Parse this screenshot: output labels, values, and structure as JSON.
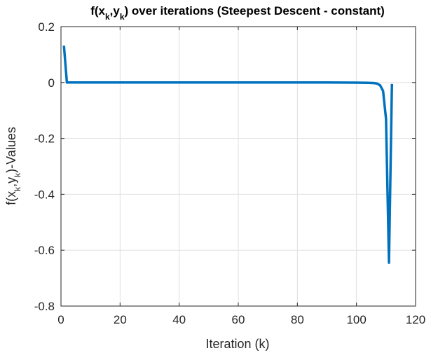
{
  "chart_data": {
    "type": "line",
    "title": {
      "prefix": "f(x",
      "sub1": "k",
      "mid": ",y",
      "sub2": "k",
      "suffix": ") over iterations (Steepest Descent - constant)"
    },
    "xlabel": "Iteration (k)",
    "ylabel": {
      "prefix": "f(x",
      "sub1": "k",
      "mid": ",y",
      "sub2": "k",
      "suffix": ")-Values"
    },
    "xlim": [
      0,
      120
    ],
    "ylim": [
      -0.8,
      0.2
    ],
    "xticks": [
      0,
      20,
      40,
      60,
      80,
      100,
      120
    ],
    "yticks": [
      -0.8,
      -0.6,
      -0.4,
      -0.2,
      0,
      0.2
    ],
    "xtick_labels": [
      "0",
      "20",
      "40",
      "60",
      "80",
      "100",
      "120"
    ],
    "ytick_labels": [
      "-0.8",
      "-0.6",
      "-0.4",
      "-0.2",
      "0",
      "0.2"
    ],
    "grid": true,
    "colors": {
      "line": "#0072bd",
      "axes": "#262626",
      "grid": "#dfdfdf"
    },
    "series": [
      {
        "x": [
          1,
          2,
          3,
          10,
          20,
          30,
          40,
          50,
          60,
          70,
          80,
          90,
          100,
          104,
          106,
          107,
          108,
          109,
          110,
          111,
          112
        ],
        "y": [
          0.132,
          0.0,
          0.0,
          0.0,
          0.0,
          0.0,
          0.0,
          0.0,
          0.0,
          0.0,
          0.0,
          0.0,
          -0.0005,
          -0.001,
          -0.002,
          -0.004,
          -0.01,
          -0.03,
          -0.13,
          -0.645,
          -0.005
        ]
      }
    ]
  }
}
